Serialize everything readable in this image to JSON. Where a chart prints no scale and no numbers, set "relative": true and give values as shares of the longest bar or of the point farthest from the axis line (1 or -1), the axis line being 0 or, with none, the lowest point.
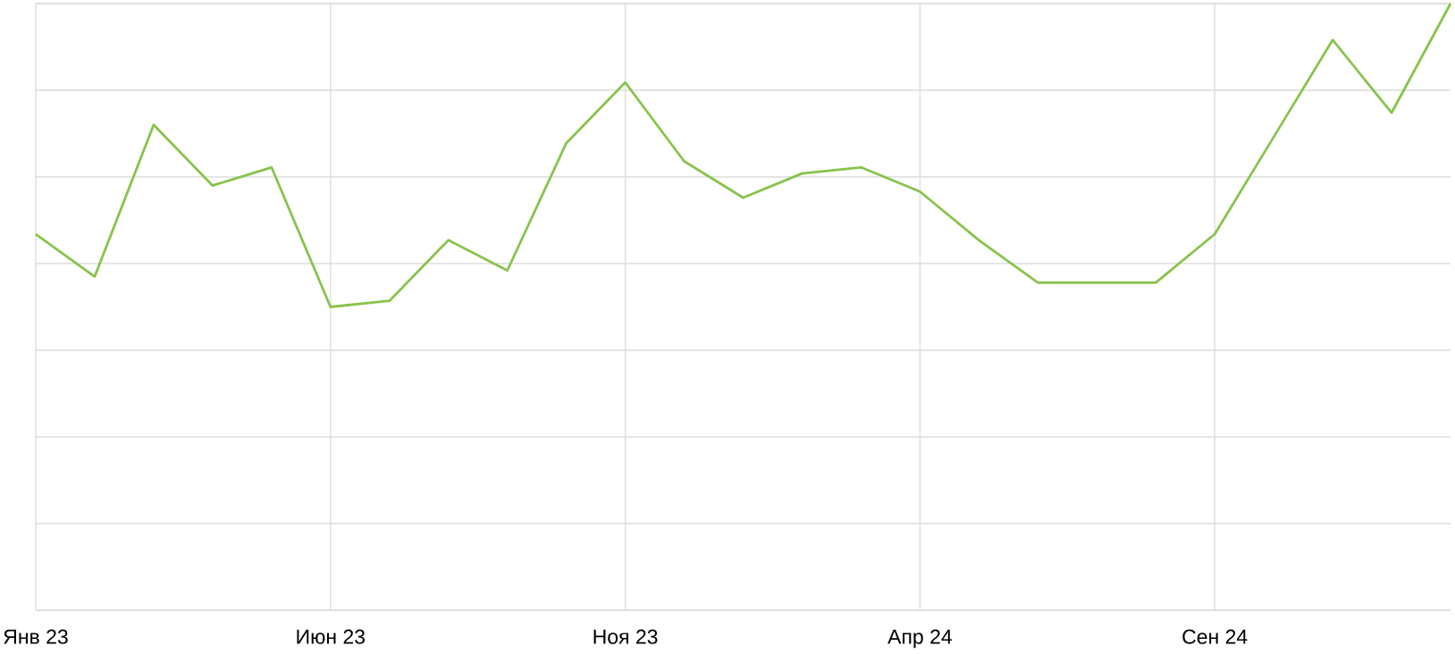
{
  "chart_data": {
    "type": "line",
    "relative": true,
    "categories": [
      "Янв 23",
      null,
      null,
      null,
      null,
      "Июн 23",
      null,
      null,
      null,
      null,
      "Ноя 23",
      null,
      null,
      null,
      null,
      "Апр 24",
      null,
      null,
      null,
      null,
      "Сен 24",
      null,
      null,
      null,
      null
    ],
    "values": [
      0.62,
      0.55,
      0.8,
      0.7,
      0.73,
      0.5,
      0.51,
      0.61,
      0.56,
      0.77,
      0.87,
      0.74,
      0.68,
      0.72,
      0.73,
      0.69,
      0.61,
      0.54,
      0.54,
      0.54,
      0.62,
      0.78,
      0.94,
      0.82,
      1
    ],
    "color": "#89c34d",
    "grid": true,
    "tick_labels": "x",
    "line_style": "solid"
  }
}
